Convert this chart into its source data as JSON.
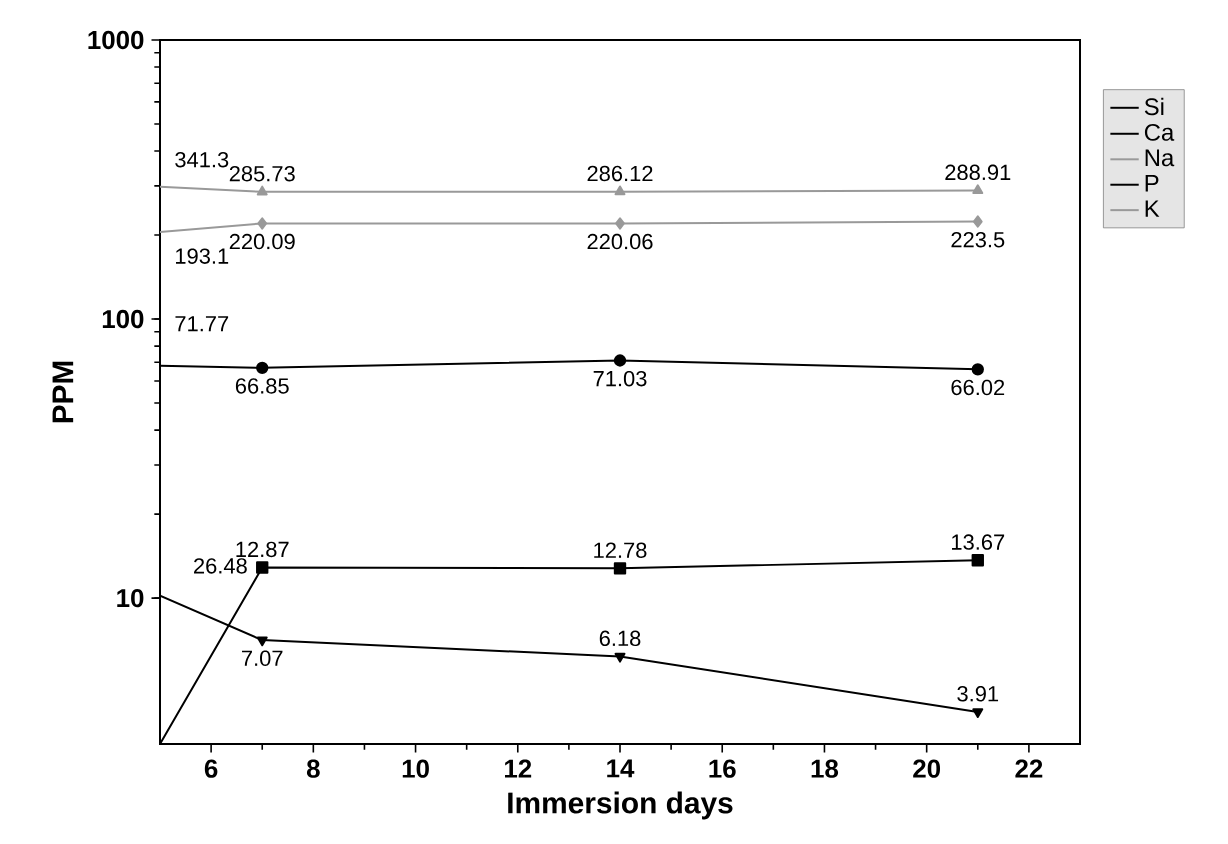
{
  "chart_data": {
    "type": "line",
    "xlabel": "Immersion days",
    "ylabel": "PPM",
    "x": [
      5,
      7,
      14,
      21
    ],
    "series": [
      {
        "name": "Si",
        "color": "#000000",
        "marker": "square",
        "values": [
          3,
          12.87,
          12.78,
          13.67
        ],
        "value_labels": [
          null,
          "12.87",
          "12.78",
          "13.67"
        ]
      },
      {
        "name": "Ca",
        "color": "#000000",
        "marker": "circle",
        "values": [
          68,
          66.85,
          71.03,
          66.02
        ],
        "value_labels": [
          null,
          "66.85",
          "71.03",
          "66.02"
        ]
      },
      {
        "name": "Na",
        "color": "#999999",
        "marker": "triangle",
        "values": [
          298,
          285.73,
          286.12,
          288.91
        ],
        "value_labels": [
          null,
          "285.73",
          "286.12",
          "288.91"
        ]
      },
      {
        "name": "P",
        "color": "#000000",
        "marker": "triangle down",
        "values": [
          10.2,
          7.07,
          6.18,
          3.91
        ],
        "value_labels": [
          null,
          "7.07",
          "6.18",
          "3.91"
        ]
      },
      {
        "name": "K",
        "color": "#999999",
        "marker": "diamond",
        "values": [
          205,
          220.09,
          220.06,
          223.5
        ],
        "value_labels": [
          null,
          "220.09",
          "220.06",
          "223.5"
        ]
      }
    ],
    "annotations": [
      "341.3",
      "193.1",
      "71.77",
      "26.48"
    ],
    "log": "y",
    "xlim": [
      5,
      23
    ],
    "ylim": [
      3,
      1000
    ],
    "xticks": [
      6,
      8,
      10,
      12,
      14,
      16,
      18,
      20,
      22
    ],
    "yticks": [
      10,
      100,
      1000
    ],
    "legend": "top right",
    "grid": false,
    "line_style": "solid"
  }
}
